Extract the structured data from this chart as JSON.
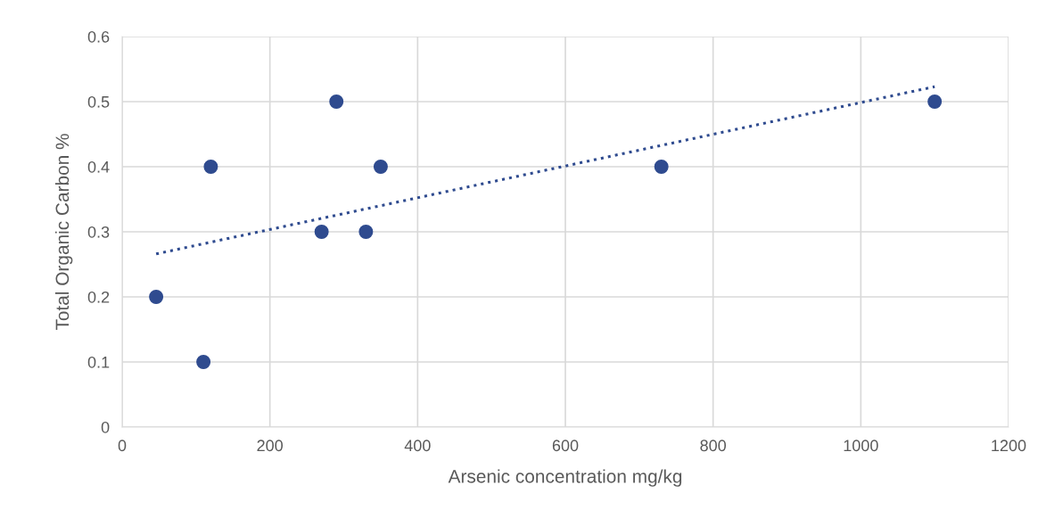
{
  "chart_data": {
    "type": "scatter",
    "xlabel": "Arsenic concentration mg/kg",
    "ylabel": "Total Organic Carbon %",
    "series": [
      {
        "color": "#2f4b8f",
        "marker": "circle",
        "x": [
          46,
          110,
          120,
          270,
          290,
          330,
          350,
          730,
          1100
        ],
        "values": [
          0.2,
          0.1,
          0.4,
          0.3,
          0.5,
          0.3,
          0.4,
          0.4,
          0.5
        ]
      },
      {
        "type": "line",
        "color": "#2f4b8f",
        "marker": "none",
        "line_style": "dotted",
        "x": [
          46,
          1100
        ],
        "values": [
          0.266,
          0.523
        ]
      }
    ],
    "xlim": [
      0,
      1200
    ],
    "xticks": [
      0,
      200,
      400,
      600,
      800,
      1000,
      1200
    ],
    "ylim": [
      0,
      0.6
    ],
    "yticks": [
      0,
      0.1,
      0.2,
      0.3,
      0.4,
      0.5,
      0.6
    ],
    "grid": true
  }
}
